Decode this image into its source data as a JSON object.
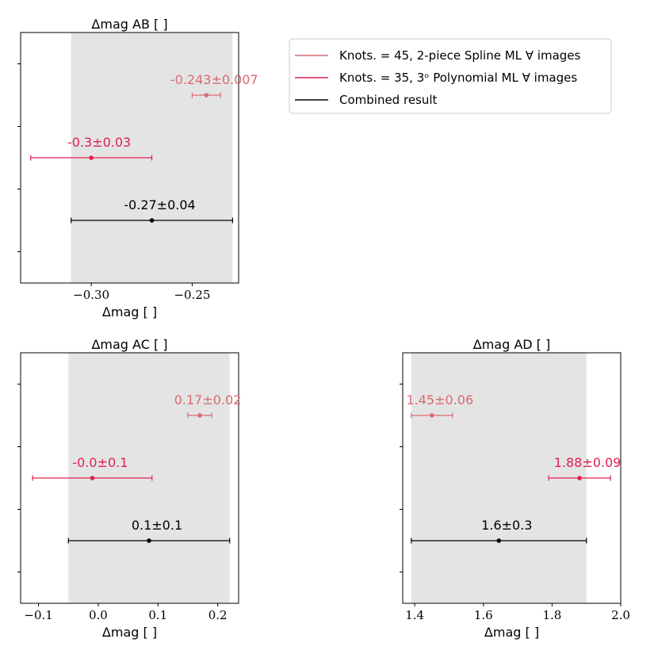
{
  "colors": {
    "spline": "#d96a73",
    "poly": "#e0204f",
    "combined": "#000000",
    "band": "#e4e4e4"
  },
  "legend": [
    {
      "label": "Knots. = 45, 2-piece Spline ML ∀ images",
      "color_key": "spline"
    },
    {
      "label": "Knots. = 35, 3ᵒ Polynomial ML ∀ images",
      "color_key": "poly"
    },
    {
      "label": "Combined result",
      "color_key": "combined"
    }
  ],
  "chart_data": [
    {
      "type": "errorbar",
      "title": "Δmag AB [ ]",
      "xlabel": "Δmag [ ]",
      "xlim": [
        -0.335,
        -0.227
      ],
      "xticks": [
        -0.3,
        -0.25
      ],
      "xtick_labels": [
        "−0.30",
        "−0.25"
      ],
      "band": [
        -0.31,
        -0.23
      ],
      "points": [
        {
          "series": "spline",
          "value": -0.243,
          "error": 0.007,
          "label": "-0.243±0.007"
        },
        {
          "series": "poly",
          "value": -0.3,
          "error": 0.03,
          "label": "-0.3±0.03"
        },
        {
          "series": "combined",
          "value": -0.27,
          "error": 0.04,
          "label": "-0.27±0.04"
        }
      ]
    },
    {
      "type": "errorbar",
      "title": "Δmag AC [ ]",
      "xlabel": "Δmag [ ]",
      "xlim": [
        -0.13,
        0.235
      ],
      "xticks": [
        -0.1,
        0.0,
        0.1,
        0.2
      ],
      "xtick_labels": [
        "−0.1",
        "0.0",
        "0.1",
        "0.2"
      ],
      "band": [
        -0.05,
        0.22
      ],
      "points": [
        {
          "series": "spline",
          "value": 0.17,
          "error": 0.02,
          "label": "0.17±0.02"
        },
        {
          "series": "poly",
          "value": -0.01,
          "error": 0.1,
          "label": "-0.0±0.1"
        },
        {
          "series": "combined",
          "value": 0.085,
          "error": 0.135,
          "label": "0.1±0.1"
        }
      ]
    },
    {
      "type": "errorbar",
      "title": "Δmag AD [ ]",
      "xlabel": "Δmag [ ]",
      "xlim": [
        1.365,
        2.0
      ],
      "xticks": [
        1.4,
        1.6,
        1.8,
        2.0
      ],
      "xtick_labels": [
        "1.4",
        "1.6",
        "1.8",
        "2.0"
      ],
      "band": [
        1.39,
        1.9
      ],
      "points": [
        {
          "series": "spline",
          "value": 1.45,
          "error": 0.06,
          "label": "1.45±0.06"
        },
        {
          "series": "poly",
          "value": 1.88,
          "error": 0.09,
          "label": "1.88±0.09"
        },
        {
          "series": "combined",
          "value": 1.645,
          "error": 0.255,
          "label": "1.6±0.3"
        }
      ]
    }
  ]
}
